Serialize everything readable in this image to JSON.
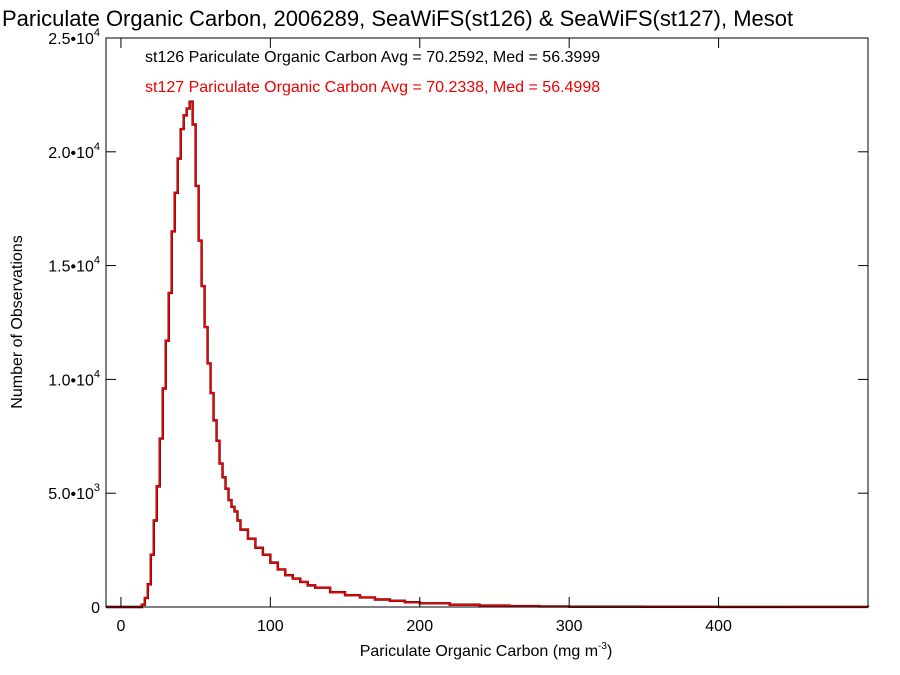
{
  "chart_data": {
    "type": "line",
    "title": "Pariculate Organic Carbon, 2006289, SeaWiFS(st126) & SeaWiFS(st127), Mesot",
    "xlabel": "Pariculate Organic Carbon (mg m",
    "xlabel_sup": "-3",
    "xlabel_close": ")",
    "ylabel": "Number of Observations",
    "xlim": [
      -10,
      500
    ],
    "ylim": [
      0,
      25000
    ],
    "x_ticks": [
      0,
      100,
      200,
      300,
      400
    ],
    "x_tick_labels": [
      "0",
      "100",
      "200",
      "300",
      "400"
    ],
    "y_ticks": [
      0,
      5000,
      10000,
      15000,
      20000,
      25000
    ],
    "y_tick_labels": [
      {
        "base": "0",
        "exp": ""
      },
      {
        "base": "5.0•10",
        "exp": "3"
      },
      {
        "base": "1.0•10",
        "exp": "4"
      },
      {
        "base": "1.5•10",
        "exp": "4"
      },
      {
        "base": "2.0•10",
        "exp": "4"
      },
      {
        "base": "2.5•10",
        "exp": "4"
      }
    ],
    "grid": false,
    "step": "histogram",
    "series": [
      {
        "name": "st126",
        "color": "#000000",
        "legend": "st126 Pariculate Organic Carbon Avg = 70.2592, Med = 56.3999",
        "x": [
          -10,
          10,
          14,
          16,
          18,
          20,
          22,
          24,
          26,
          28,
          30,
          32,
          34,
          36,
          38,
          40,
          42,
          44,
          46,
          48,
          50,
          52,
          54,
          56,
          58,
          60,
          62,
          64,
          66,
          68,
          70,
          72,
          74,
          76,
          78,
          80,
          85,
          90,
          95,
          100,
          105,
          110,
          115,
          120,
          125,
          130,
          140,
          150,
          160,
          170,
          180,
          190,
          200,
          220,
          240,
          260,
          280,
          300,
          350,
          400,
          450,
          500
        ],
        "y": [
          0,
          0,
          100,
          400,
          1000,
          2300,
          3800,
          5300,
          7400,
          9600,
          11700,
          13800,
          16500,
          18200,
          19700,
          21000,
          21600,
          21900,
          22200,
          21200,
          18500,
          16100,
          14100,
          12300,
          10700,
          9400,
          8200,
          7300,
          6300,
          5700,
          5200,
          4700,
          4400,
          4200,
          3800,
          3400,
          3000,
          2600,
          2300,
          1950,
          1650,
          1400,
          1250,
          1100,
          950,
          850,
          650,
          520,
          420,
          330,
          270,
          210,
          160,
          100,
          60,
          40,
          25,
          15,
          8,
          4,
          2,
          0
        ]
      },
      {
        "name": "st127",
        "color": "#ee0000",
        "legend": "st127 Pariculate Organic Carbon Avg = 70.2338, Med = 56.4998",
        "x": [
          -10,
          10,
          14,
          16,
          18,
          20,
          22,
          24,
          26,
          28,
          30,
          32,
          34,
          36,
          38,
          40,
          42,
          44,
          46,
          48,
          50,
          52,
          54,
          56,
          58,
          60,
          62,
          64,
          66,
          68,
          70,
          72,
          74,
          76,
          78,
          80,
          85,
          90,
          95,
          100,
          105,
          110,
          115,
          120,
          125,
          130,
          140,
          150,
          160,
          170,
          180,
          190,
          200,
          220,
          240,
          260,
          280,
          300,
          350,
          400,
          450,
          500
        ],
        "y": [
          0,
          0,
          100,
          400,
          1000,
          2300,
          3800,
          5300,
          7400,
          9600,
          11700,
          13800,
          16500,
          18200,
          19700,
          21000,
          21600,
          21900,
          22200,
          21200,
          18500,
          16100,
          14100,
          12300,
          10700,
          9400,
          8200,
          7300,
          6300,
          5700,
          5200,
          4700,
          4400,
          4200,
          3800,
          3400,
          3000,
          2600,
          2300,
          1950,
          1650,
          1400,
          1250,
          1100,
          950,
          850,
          650,
          520,
          420,
          330,
          270,
          210,
          160,
          100,
          60,
          40,
          25,
          15,
          8,
          4,
          2,
          0
        ]
      }
    ]
  }
}
